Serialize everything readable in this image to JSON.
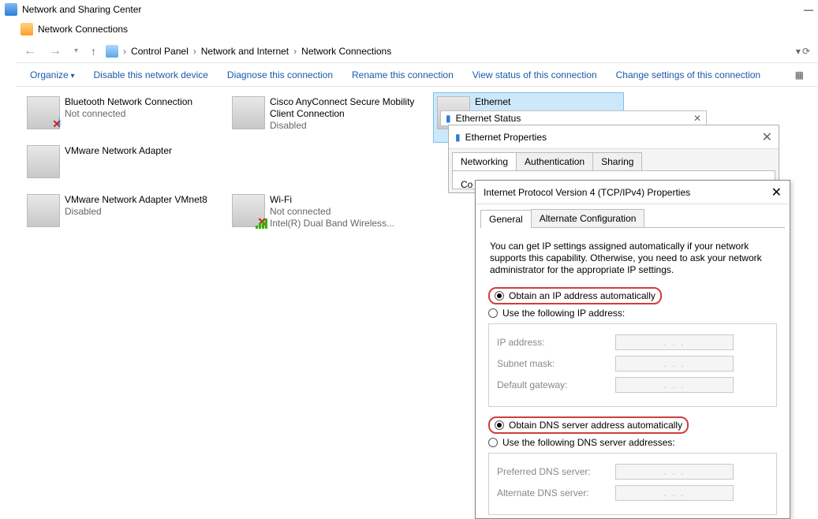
{
  "windows": {
    "sharing_center_title": "Network and Sharing Center",
    "connections_title": "Network Connections"
  },
  "breadcrumb": {
    "root": "Control Panel",
    "level1": "Network and Internet",
    "level2": "Network Connections"
  },
  "toolbar": {
    "organize": "Organize",
    "disable": "Disable this network device",
    "diagnose": "Diagnose this connection",
    "rename": "Rename this connection",
    "view_status": "View status of this connection",
    "change_settings": "Change settings of this connection"
  },
  "adapters": [
    {
      "name": "Bluetooth Network Connection",
      "status": "Not connected",
      "detail": "",
      "badge": "x",
      "sub": "bt",
      "selected": false
    },
    {
      "name": "Cisco AnyConnect Secure Mobility Client Connection",
      "status": "Disabled",
      "detail": "",
      "badge": "",
      "sub": "",
      "selected": false
    },
    {
      "name": "Ethernet",
      "status": "",
      "detail": "",
      "badge": "",
      "sub": "",
      "selected": true
    },
    {
      "name": "VMware Network Adapter",
      "status": "",
      "detail": "",
      "badge": "",
      "sub": "",
      "selected": false
    },
    {
      "name": "VMware Network Adapter VMnet8",
      "status": "Disabled",
      "detail": "",
      "badge": "",
      "sub": "",
      "selected": false
    },
    {
      "name": "Wi-Fi",
      "status": "Not connected",
      "detail": "Intel(R) Dual Band Wireless...",
      "badge": "x",
      "sub": "wifi",
      "selected": false
    }
  ],
  "eth_status_title": "Ethernet Status",
  "eth_props": {
    "title": "Ethernet Properties",
    "tabs": [
      "Networking",
      "Authentication",
      "Sharing"
    ],
    "active_tab": 0,
    "connect_label": "Co"
  },
  "ipv4": {
    "title": "Internet Protocol Version 4 (TCP/IPv4) Properties",
    "tabs": [
      "General",
      "Alternate Configuration"
    ],
    "active_tab": 0,
    "desc": "You can get IP settings assigned automatically if your network supports this capability. Otherwise, you need to ask your network administrator for the appropriate IP settings.",
    "ip_auto": "Obtain an IP address automatically",
    "ip_manual": "Use the following IP address:",
    "ip_selected": "auto",
    "fields_ip": {
      "ip_address": "IP address:",
      "subnet": "Subnet mask:",
      "gateway": "Default gateway:"
    },
    "dns_auto": "Obtain DNS server address automatically",
    "dns_manual": "Use the following DNS server addresses:",
    "dns_selected": "auto",
    "fields_dns": {
      "preferred": "Preferred DNS server:",
      "alternate": "Alternate DNS server:"
    },
    "ip_placeholder": ".       .       .",
    "highlight_color": "#cf3e3e"
  },
  "colors": {
    "link": "#1a5aaa",
    "border": "#bcbcbc",
    "panel_bg": "#f4f4f4",
    "selected_bg": "#cde8fb",
    "selected_border": "#7ac0ee"
  }
}
